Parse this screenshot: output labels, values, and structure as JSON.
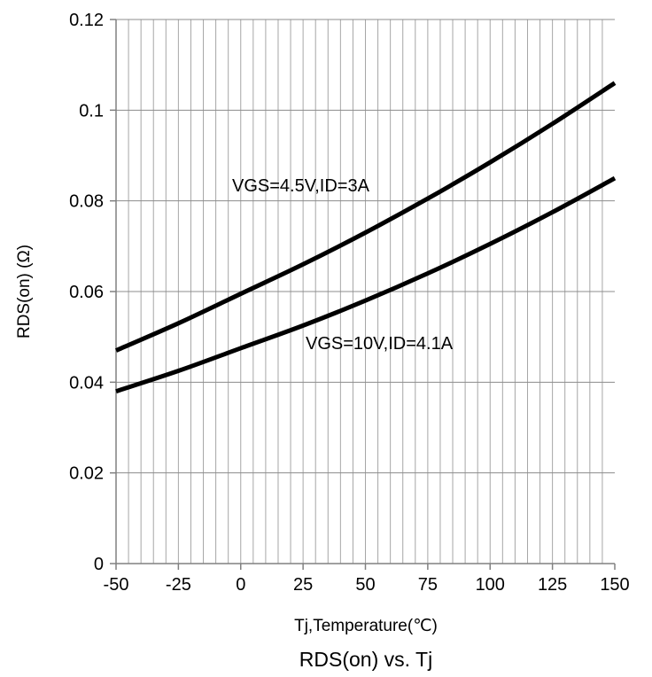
{
  "chart_data": {
    "type": "line",
    "title": "RDS(on) vs. Tj",
    "xlabel": "Tj,Temperature(℃)",
    "ylabel": "RDS(on) (Ω)",
    "xlim": [
      -50,
      150
    ],
    "ylim": [
      0,
      0.12
    ],
    "xticks": [
      -50,
      -25,
      0,
      25,
      50,
      75,
      100,
      125,
      150
    ],
    "xtick_labels": [
      "-50",
      "-25",
      "0",
      "25",
      "50",
      "75",
      "100",
      "125",
      "150"
    ],
    "yticks": [
      0,
      0.02,
      0.04,
      0.06,
      0.08,
      0.1,
      0.12
    ],
    "ytick_labels": [
      "0",
      "0.02",
      "0.04",
      "0.06",
      "0.08",
      "0.1",
      "0.12"
    ],
    "grid": true,
    "minor_x_grid_step": 5,
    "legend": "none",
    "line_color": "#000000",
    "series": [
      {
        "label": "VGS=4.5V,ID=3A",
        "x": [
          -50,
          -25,
          0,
          25,
          50,
          75,
          100,
          125,
          150
        ],
        "y": [
          0.047,
          0.053,
          0.0595,
          0.066,
          0.073,
          0.0805,
          0.0885,
          0.097,
          0.106
        ]
      },
      {
        "label": "VGS=10V,ID=4.1A",
        "x": [
          -50,
          -25,
          0,
          25,
          50,
          75,
          100,
          125,
          150
        ],
        "y": [
          0.038,
          0.0425,
          0.0475,
          0.0525,
          0.058,
          0.064,
          0.0705,
          0.0775,
          0.085
        ]
      }
    ]
  }
}
